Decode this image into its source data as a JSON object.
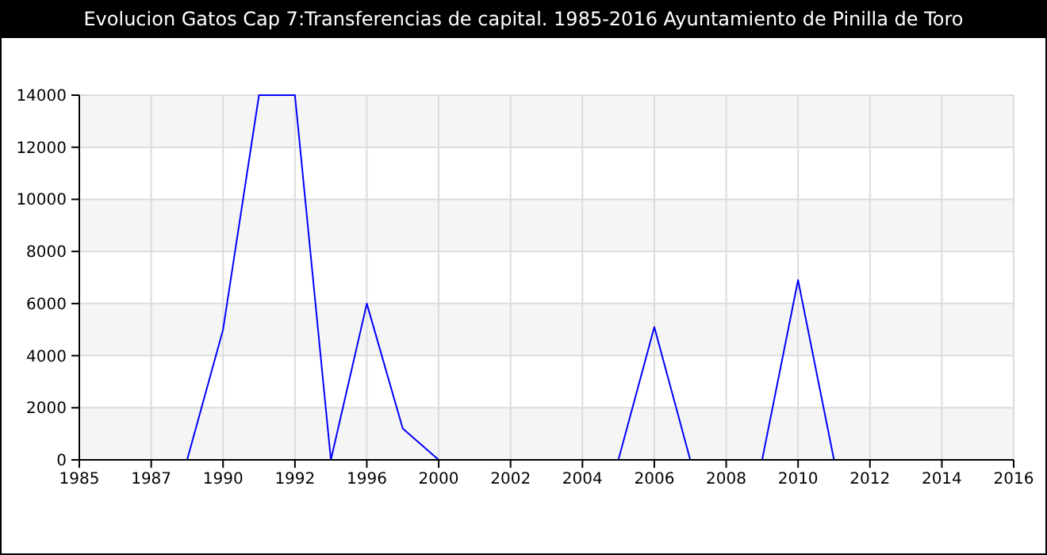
{
  "chart_data": {
    "type": "line",
    "title": "Evolucion Gatos Cap 7:Transferencias de capital. 1985-2016 Ayuntamiento de Pinilla de Toro",
    "categories": [
      "1985",
      null,
      "1987",
      null,
      "1990",
      null,
      "1992",
      null,
      "1996",
      null,
      "2000",
      null,
      "2002",
      null,
      "2004",
      null,
      "2006",
      null,
      "2008",
      null,
      "2010",
      null,
      "2012",
      null,
      "2014",
      null,
      "2016"
    ],
    "series": [
      {
        "color": "#0000ff",
        "values": [
          null,
          null,
          null,
          0,
          5000,
          14000,
          14000,
          0,
          6000,
          1200,
          0,
          0,
          0,
          0,
          0,
          0,
          5100,
          0,
          0,
          0,
          6900,
          0,
          null,
          null,
          null,
          null,
          null
        ]
      }
    ],
    "ylim": [
      0,
      14000
    ],
    "yticks": [
      0,
      2000,
      4000,
      6000,
      8000,
      10000,
      12000,
      14000
    ],
    "grid": true,
    "marker": "none",
    "line_style": "solid"
  }
}
